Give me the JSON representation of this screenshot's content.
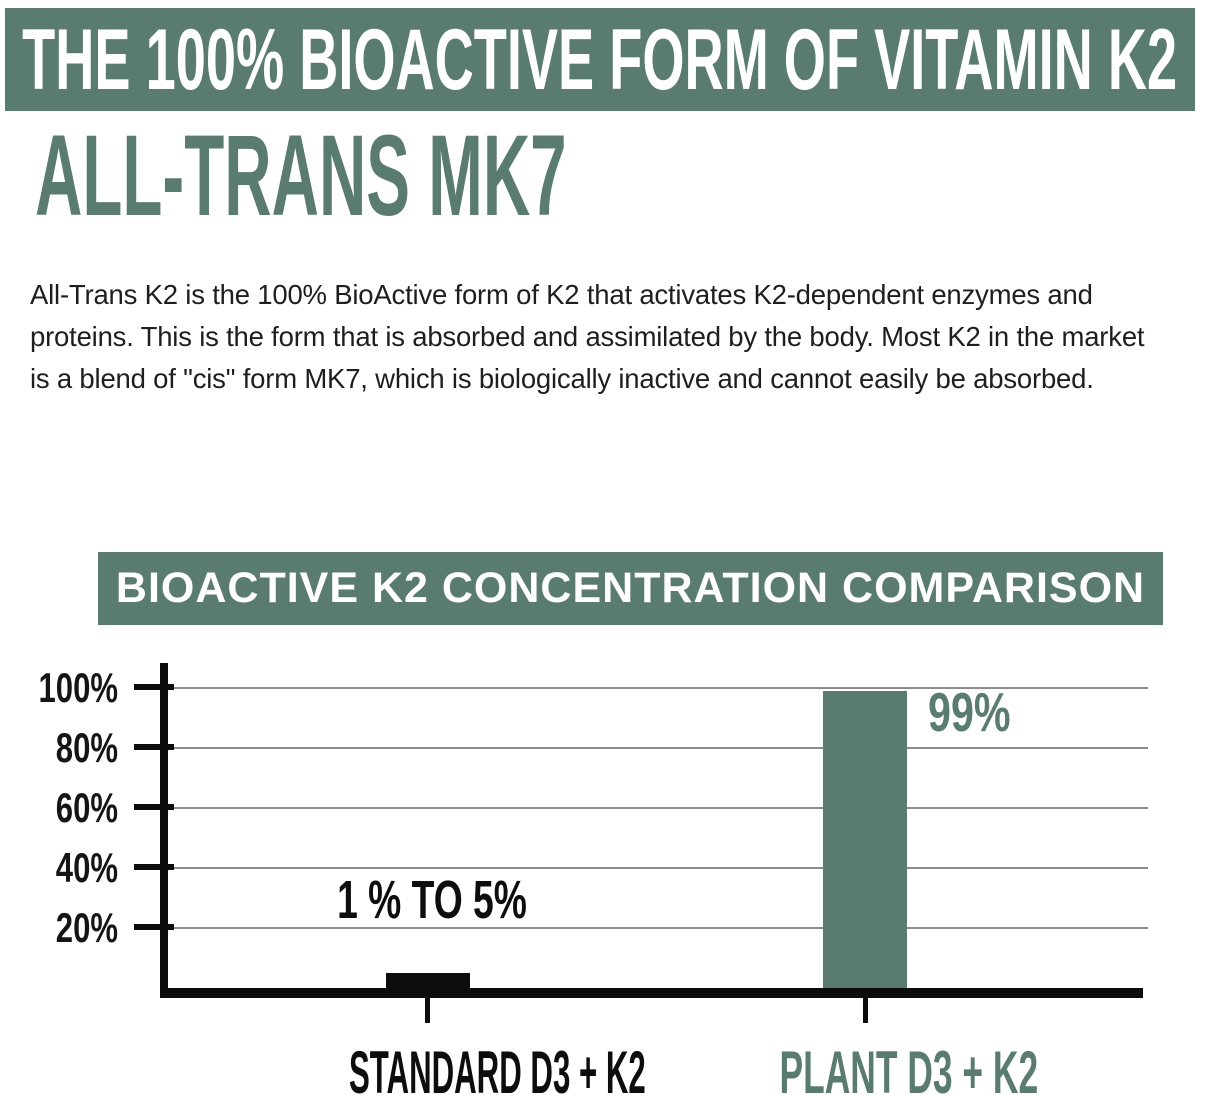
{
  "page": {
    "background": "#ffffff",
    "accent_green": "#5a7c70",
    "text_black": "#1e1e1e"
  },
  "header": {
    "banner_text": "THE 100% BIOACTIVE FORM OF VITAMIN K2",
    "title": "ALL-TRANS MK7"
  },
  "intro": {
    "text": "All-Trans K2 is the 100% BioActive form of K2 that activates K2-dependent enzymes and proteins. This is the form that is absorbed and assimilated by the body. Most K2 in the market is a blend of \"cis\" form MK7, which is biologically inactive and cannot easily be absorbed."
  },
  "chart_data": {
    "type": "bar",
    "title": "BIOACTIVE K2 CONCENTRATION COMPARISON",
    "categories": [
      "STANDARD D3 + K2",
      "PLANT D3 + K2"
    ],
    "values": [
      5,
      99
    ],
    "value_labels": [
      "1 % TO 5%",
      "99%"
    ],
    "y_ticks": [
      {
        "label": "100%",
        "value": 100
      },
      {
        "label": "80%",
        "value": 80
      },
      {
        "label": "60%",
        "value": 60
      },
      {
        "label": "40%",
        "value": 40
      },
      {
        "label": "20%",
        "value": 20
      }
    ],
    "ylim": [
      0,
      110
    ],
    "xlabel": "",
    "ylabel": "",
    "grid": true,
    "legend": false,
    "bar_colors": [
      "#0d0d0d",
      "#5a7c70"
    ],
    "axis_color": "#0c0c0c",
    "grid_color": "#8b8b8b",
    "category_label_colors": [
      "#0d0d0d",
      "#5a7c70"
    ]
  }
}
